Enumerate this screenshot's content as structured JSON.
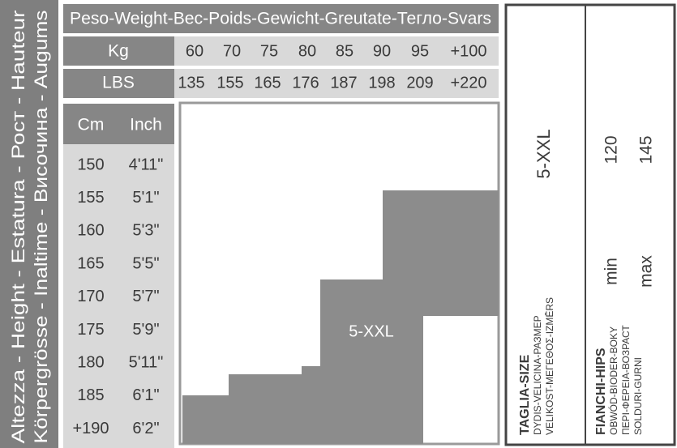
{
  "side_label": [
    "Altezza - Height - Estatura - Рост - Hauteur",
    "Körpergrösse - Inaltime - Височина - Augums"
  ],
  "weight_header": "Peso-Weight-Bec-Poids-Gewicht-Greutate-Тегло-Svars",
  "weight_rows": [
    {
      "label": "Kg",
      "values": [
        "60",
        "70",
        "75",
        "80",
        "85",
        "90",
        "95",
        "+100"
      ]
    },
    {
      "label": "LBS",
      "values": [
        "135",
        "155",
        "165",
        "176",
        "187",
        "198",
        "209",
        "+220"
      ]
    }
  ],
  "height_header": [
    "Cm",
    "Inch"
  ],
  "height_rows": [
    [
      "150",
      "4'11\""
    ],
    [
      "155",
      "5'1\""
    ],
    [
      "160",
      "5'3\""
    ],
    [
      "165",
      "5'5\""
    ],
    [
      "170",
      "5'7\""
    ],
    [
      "175",
      "5'9\""
    ],
    [
      "180",
      "5'11\""
    ],
    [
      "185",
      "6'1\""
    ],
    [
      "+190",
      "6'2\""
    ]
  ],
  "chart_label": "5-XXL",
  "size_panel": {
    "size": "5-XXL",
    "title": "TAGLIA-SIZE",
    "subtitles": [
      "DYDIS-VELICINA-РАЗМЕР",
      "VELIKOST-ΜΕΓΕΘΟΣ-IZMĒRS"
    ]
  },
  "hips_panel": {
    "min_value": "120",
    "max_value": "145",
    "min_label": "min",
    "max_label": "max",
    "title": "FIANCHI-HIPS",
    "subtitles": [
      "OBWÓD-BIODER-BOKY",
      "ΠΕΡΙ-ΦΕΡΕΙΑ-ВОЗРАСТ",
      "SOLDURI-GURNI"
    ]
  }
}
